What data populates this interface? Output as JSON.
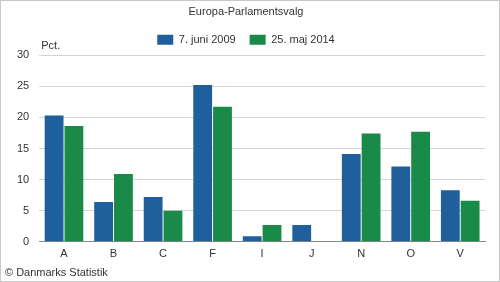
{
  "chart_data": {
    "type": "bar",
    "title": "Europa-Parlamentsvalg",
    "ylabel": "Pct.",
    "annotations": [
      "© Danmarks Statistik"
    ],
    "categories": [
      "A",
      "B",
      "C",
      "F",
      "I",
      "J",
      "N",
      "O",
      "V"
    ],
    "series": [
      {
        "name": "7. juni 2009",
        "color": "#1f5f9b",
        "values": [
          20.3,
          6.4,
          7.2,
          25.2,
          0.9,
          2.7,
          14.1,
          12.1,
          8.3
        ]
      },
      {
        "name": "25. maj 2014",
        "color": "#1a8a48",
        "values": [
          18.6,
          10.9,
          5.0,
          21.7,
          2.7,
          null,
          17.4,
          17.7,
          6.6
        ]
      }
    ],
    "ylim": [
      0,
      30
    ],
    "yticks": [
      0,
      5,
      10,
      15,
      20,
      25,
      30
    ],
    "grid": true,
    "legend": "top"
  }
}
